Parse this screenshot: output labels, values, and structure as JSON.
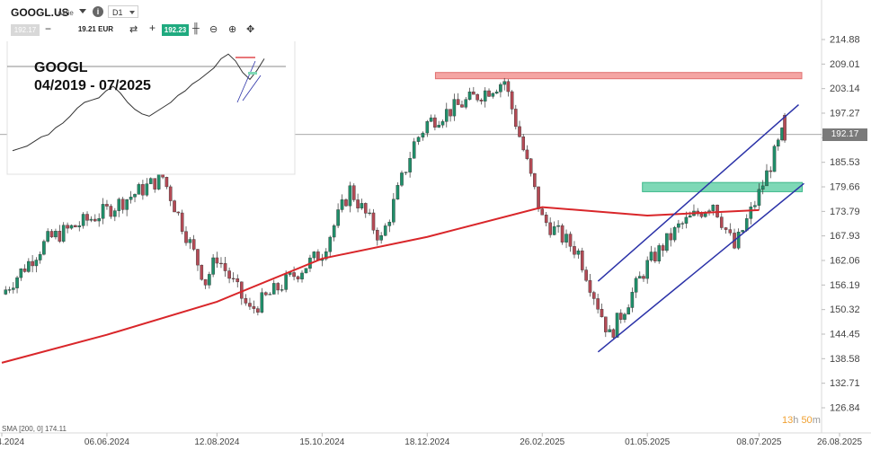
{
  "toolbar": {
    "symbol": "GOOGL.US",
    "symbol_type": "Aktie",
    "timeframe": "D1",
    "bid": "192.17",
    "quantity": "19.21 EUR",
    "ask": "192.23"
  },
  "inset": {
    "title": "GOOGL",
    "subtitle": "04/2019 - 07/2025"
  },
  "indicator": {
    "label": "SMA [200, 0] 174.11"
  },
  "timer": {
    "hours": "13",
    "h_unit": "h",
    "minutes": "50",
    "m_unit": "m"
  },
  "current_price": "192.17",
  "colors": {
    "bull": "#1f8f6a",
    "bear": "#b44a55",
    "sma": "#d9262a",
    "channel": "#2b32a8",
    "resistance": "#f4a5a3",
    "support": "#7ed8b6",
    "price_tag": "#7a7a7a"
  },
  "chart_data": {
    "type": "candlestick",
    "symbol": "GOOGL.US",
    "timeframe": "D1",
    "y_ticks": [
      "214.88",
      "209.01",
      "203.14",
      "197.27",
      "191.40",
      "185.53",
      "179.66",
      "173.79",
      "167.93",
      "162.06",
      "156.19",
      "150.32",
      "144.45",
      "138.58",
      "132.71",
      "126.84"
    ],
    "x_ticks": [
      "03.04.2024",
      "06.06.2024",
      "12.08.2024",
      "15.10.2024",
      "18.12.2024",
      "26.02.2025",
      "01.05.2025",
      "08.07.2025",
      "26.08.2025"
    ],
    "ylim": [
      126.84,
      214.88
    ],
    "current_price": 192.17,
    "zones": [
      {
        "name": "resistance",
        "low": 205.5,
        "high": 207.0
      },
      {
        "name": "support",
        "low": 178.5,
        "high": 180.7
      }
    ],
    "sma_200": [
      {
        "date": "03.04.2024",
        "value": 137.6
      },
      {
        "date": "06.06.2024",
        "value": 144.3
      },
      {
        "date": "12.08.2024",
        "value": 152.2
      },
      {
        "date": "15.10.2024",
        "value": 162.5
      },
      {
        "date": "18.12.2024",
        "value": 167.7
      },
      {
        "date": "26.02.2025",
        "value": 174.8
      },
      {
        "date": "01.05.2025",
        "value": 172.8
      },
      {
        "date": "08.07.2025",
        "value": 174.1
      }
    ],
    "channel_lower": [
      {
        "date": "01.04.2025",
        "value": 140.2
      },
      {
        "date": "08.07.2025",
        "value": 178.9
      },
      {
        "date": "31.07.2025",
        "value": 182.2
      }
    ],
    "channel_upper": [
      {
        "date": "01.04.2025",
        "value": 157.1
      },
      {
        "date": "08.07.2025",
        "value": 190.3
      },
      {
        "date": "31.07.2025",
        "value": 199.3
      }
    ],
    "price_path": [
      {
        "date": "03.04.2024",
        "value": 154
      },
      {
        "date": "01.05.2024",
        "value": 167
      },
      {
        "date": "06.06.2024",
        "value": 174
      },
      {
        "date": "10.07.2024",
        "value": 182
      },
      {
        "date": "05.08.2024",
        "value": 157
      },
      {
        "date": "12.08.2024",
        "value": 163
      },
      {
        "date": "01.09.2024",
        "value": 150
      },
      {
        "date": "15.10.2024",
        "value": 164
      },
      {
        "date": "01.11.2024",
        "value": 179
      },
      {
        "date": "20.11.2024",
        "value": 167
      },
      {
        "date": "10.12.2024",
        "value": 190
      },
      {
        "date": "18.12.2024",
        "value": 195
      },
      {
        "date": "03.02.2025",
        "value": 205
      },
      {
        "date": "26.02.2025",
        "value": 172
      },
      {
        "date": "20.03.2025",
        "value": 164
      },
      {
        "date": "08.04.2025",
        "value": 144
      },
      {
        "date": "01.05.2025",
        "value": 161
      },
      {
        "date": "20.05.2025",
        "value": 170
      },
      {
        "date": "10.06.2025",
        "value": 176
      },
      {
        "date": "23.06.2025",
        "value": 165
      },
      {
        "date": "08.07.2025",
        "value": 178
      },
      {
        "date": "22.07.2025",
        "value": 192
      }
    ]
  }
}
